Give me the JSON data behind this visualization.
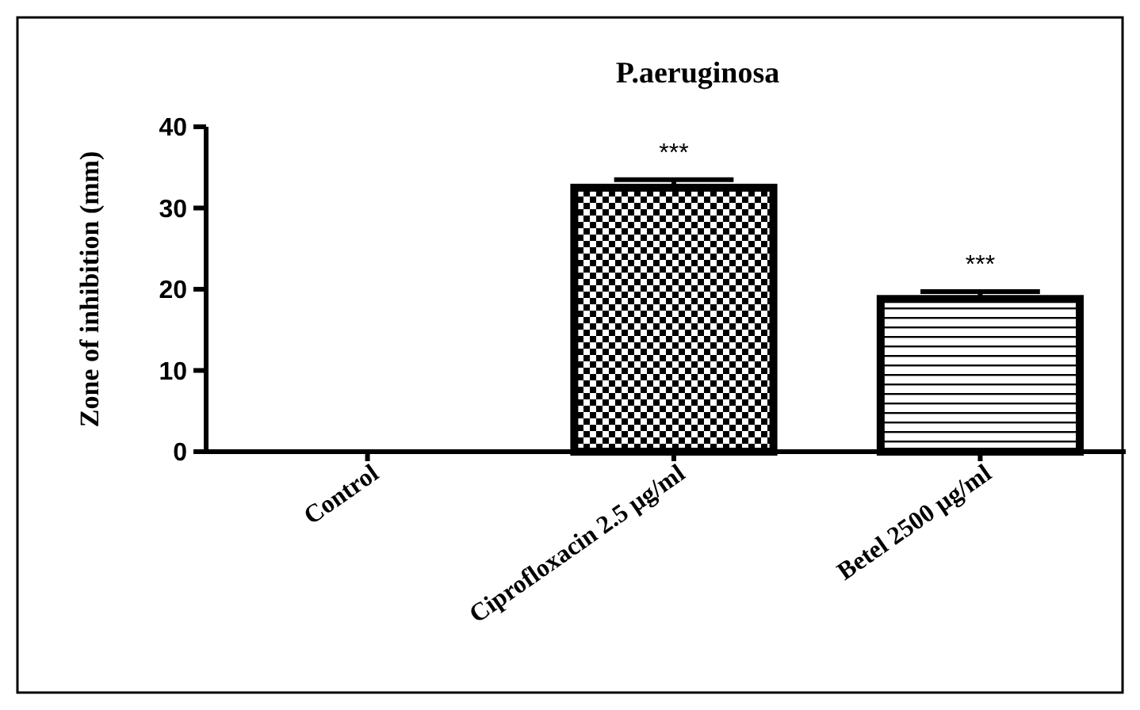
{
  "chart_data": {
    "type": "bar",
    "title": "P.aeruginosa",
    "ylabel": "Zone of inhibition (mm)",
    "categories": [
      "Control",
      "Ciprofloxacin 2.5 µg/ml",
      "Betel 2500 µg/ml"
    ],
    "values": [
      0,
      32.5,
      18.8
    ],
    "errors": [
      null,
      1,
      0.9
    ],
    "color": "#000000",
    "ylim": [
      0,
      40
    ],
    "yticks": [
      0,
      10,
      20,
      30,
      40
    ],
    "grid": false,
    "annotations": [
      {
        "text": "***",
        "x": "Ciprofloxacin 2.5 µg/ml",
        "y": 33.5
      },
      {
        "text": "***",
        "x": "Betel 2500 µg/ml",
        "y": 19.7
      }
    ]
  }
}
